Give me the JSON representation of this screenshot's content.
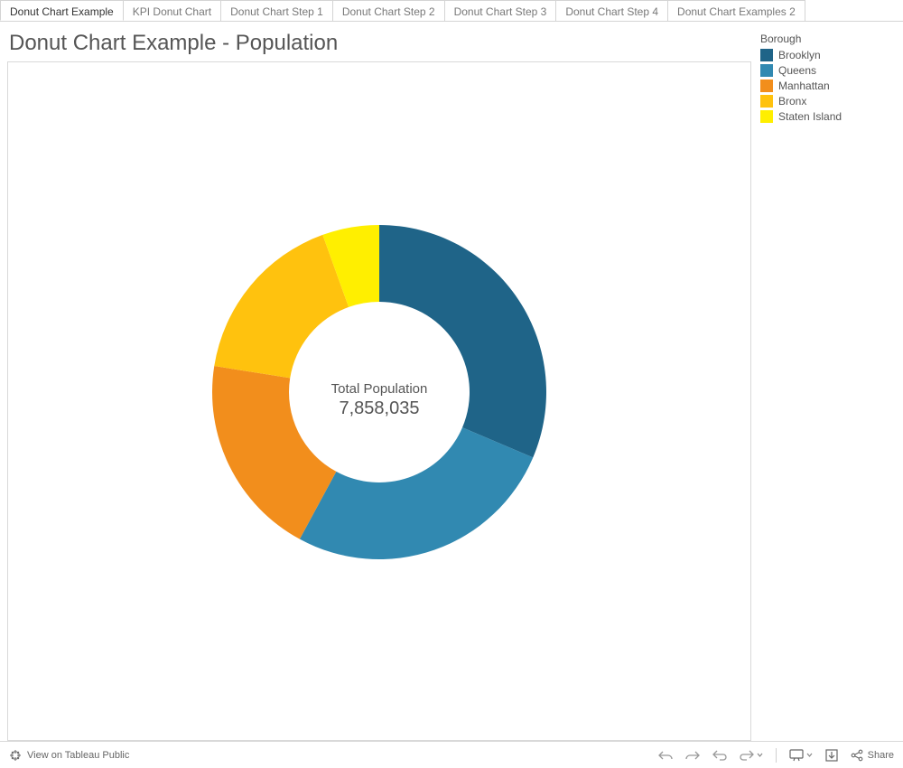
{
  "tabs": [
    {
      "label": "Donut Chart Example",
      "active": true
    },
    {
      "label": "KPI Donut Chart",
      "active": false
    },
    {
      "label": "Donut Chart Step 1",
      "active": false
    },
    {
      "label": "Donut Chart Step 2",
      "active": false
    },
    {
      "label": "Donut Chart Step 3",
      "active": false
    },
    {
      "label": "Donut Chart Step 4",
      "active": false
    },
    {
      "label": "Donut Chart Examples 2",
      "active": false
    }
  ],
  "title": "Donut Chart Example - Population",
  "chart": {
    "type": "donut",
    "size": 370,
    "outer_radius": 185,
    "inner_radius": 100,
    "background_color": "#ffffff",
    "border_color": "#d9d9d9",
    "start_angle": 0,
    "center_label_line1": "Total Population",
    "center_label_line2": "7,858,035",
    "center_label_color": "#555555",
    "slices": [
      {
        "label": "Brooklyn",
        "value": 2465326,
        "fraction": 0.314,
        "color": "#1f6488"
      },
      {
        "label": "Queens",
        "value": 2080202,
        "fraction": 0.265,
        "color": "#3189b1"
      },
      {
        "label": "Manhattan",
        "value": 1537195,
        "fraction": 0.196,
        "color": "#f28e1c"
      },
      {
        "label": "Bronx",
        "value": 1332650,
        "fraction": 0.17,
        "color": "#ffc20e"
      },
      {
        "label": "Staten Island",
        "value": 442662,
        "fraction": 0.055,
        "color": "#ffef00"
      }
    ]
  },
  "legend": {
    "title": "Borough",
    "items": [
      {
        "label": "Brooklyn",
        "color": "#1f6488"
      },
      {
        "label": "Queens",
        "color": "#3189b1"
      },
      {
        "label": "Manhattan",
        "color": "#f28e1c"
      },
      {
        "label": "Bronx",
        "color": "#ffc20e"
      },
      {
        "label": "Staten Island",
        "color": "#ffef00"
      }
    ]
  },
  "toolbar": {
    "view_label": "View on Tableau Public",
    "share_label": "Share"
  }
}
